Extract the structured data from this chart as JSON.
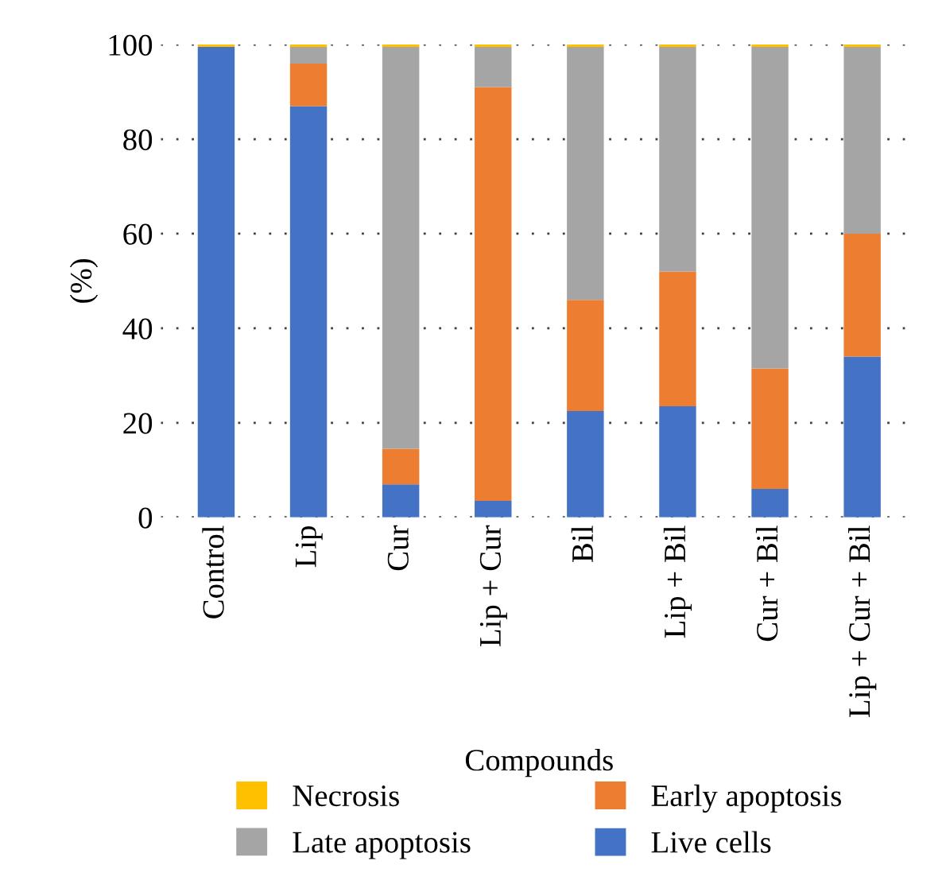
{
  "chart_data": {
    "type": "bar",
    "stacked": true,
    "xlabel": "Compounds",
    "ylabel": "(%)",
    "categories": [
      "Control",
      "Lip",
      "Cur",
      "Lip + Cur",
      "Bil",
      "Lip + Bil",
      "Cur + Bil",
      "Lip + Cur + Bil"
    ],
    "series": [
      {
        "name": "Live cells",
        "color": "#4472c4",
        "values": [
          99.5,
          87,
          7,
          3.5,
          22.5,
          23.5,
          6,
          34
        ]
      },
      {
        "name": "Early apoptosis",
        "color": "#ed7d31",
        "values": [
          0,
          9,
          7.5,
          87.5,
          23.5,
          28.5,
          25.5,
          26
        ]
      },
      {
        "name": "Late apoptosis",
        "color": "#a5a5a5",
        "values": [
          0,
          3.5,
          85,
          8.5,
          53.5,
          47.5,
          68,
          39.5
        ]
      },
      {
        "name": "Necrosis",
        "color": "#ffc000",
        "values": [
          0.5,
          0.5,
          0.5,
          0.5,
          0.5,
          0.5,
          0.5,
          0.5
        ]
      }
    ],
    "ylim": [
      0,
      100
    ],
    "yticks": [
      0,
      20,
      40,
      60,
      80,
      100
    ],
    "grid": "y",
    "legend": "bottom"
  }
}
